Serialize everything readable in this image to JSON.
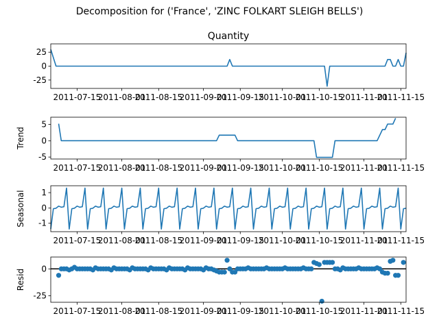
{
  "chart_data": {
    "type": "line",
    "title": "Decomposition for ('France', 'ZINC FOLKART SLEIGH BELLS')",
    "x_start": "2011-07-05",
    "x_end": "2011-11-17",
    "x_tick_labels": [
      "2011-07-15",
      "2011-08-01",
      "2011-08-15",
      "2011-09-01",
      "2011-09-15",
      "2011-10-01",
      "2011-10-15",
      "2011-11-01",
      "2011-11-15"
    ],
    "color": "#1f77b4",
    "panels": [
      {
        "kind": "line",
        "title": "Quantity",
        "ylabel": "",
        "ylim": [
          -40,
          40
        ],
        "yticks": [
          -25,
          0,
          25
        ],
        "points": [
          [
            "2011-07-05",
            30
          ],
          [
            "2011-07-07",
            0
          ],
          [
            "2011-09-10",
            0
          ],
          [
            "2011-09-11",
            12
          ],
          [
            "2011-09-12",
            0
          ],
          [
            "2011-10-17",
            0
          ],
          [
            "2011-10-18",
            -36
          ],
          [
            "2011-10-19",
            0
          ],
          [
            "2011-11-09",
            0
          ],
          [
            "2011-11-10",
            12
          ],
          [
            "2011-11-11",
            12
          ],
          [
            "2011-11-12",
            0
          ],
          [
            "2011-11-13",
            0
          ],
          [
            "2011-11-14",
            12
          ],
          [
            "2011-11-15",
            0
          ],
          [
            "2011-11-16",
            0
          ],
          [
            "2011-11-17",
            24
          ]
        ]
      },
      {
        "kind": "line",
        "title": "",
        "ylabel": "Trend",
        "ylim": [
          -5.6,
          7.2
        ],
        "yticks": [
          -5,
          0,
          5
        ],
        "points": [
          [
            "2011-07-08",
            5.2
          ],
          [
            "2011-07-09",
            0
          ],
          [
            "2011-09-06",
            0
          ],
          [
            "2011-09-07",
            1.7
          ],
          [
            "2011-09-13",
            1.7
          ],
          [
            "2011-09-14",
            0
          ],
          [
            "2011-10-13",
            0
          ],
          [
            "2011-10-14",
            -5.1
          ],
          [
            "2011-10-20",
            -5.1
          ],
          [
            "2011-10-21",
            0
          ],
          [
            "2011-11-06",
            0
          ],
          [
            "2011-11-08",
            3.4
          ],
          [
            "2011-11-09",
            3.4
          ],
          [
            "2011-11-10",
            5.1
          ],
          [
            "2011-11-12",
            5.1
          ],
          [
            "2011-11-13",
            6.9
          ]
        ]
      },
      {
        "kind": "line",
        "title": "",
        "ylabel": "Seasonal",
        "ylim": [
          -1.55,
          1.45
        ],
        "yticks": [
          -1,
          0,
          1
        ],
        "period_days": 7,
        "cycle": [
          -1.38,
          -0.05,
          -0.02,
          0.12,
          0.05,
          0.08,
          1.3
        ],
        "points": []
      },
      {
        "kind": "scatter",
        "title": "",
        "ylabel": "Resid",
        "ylim": [
          -31,
          11
        ],
        "yticks": [
          -25,
          0
        ],
        "points": [
          [
            "2011-07-08",
            -6
          ],
          [
            "2011-07-09",
            0
          ],
          [
            "2011-07-10",
            0
          ],
          [
            "2011-07-11",
            0
          ],
          [
            "2011-07-12",
            -1
          ],
          [
            "2011-07-13",
            0
          ],
          [
            "2011-07-14",
            1.5
          ],
          [
            "2011-07-15",
            0
          ],
          [
            "2011-07-16",
            0
          ],
          [
            "2011-07-17",
            0
          ],
          [
            "2011-07-18",
            0
          ],
          [
            "2011-07-19",
            0
          ],
          [
            "2011-07-20",
            0
          ],
          [
            "2011-07-21",
            -1
          ],
          [
            "2011-07-22",
            1
          ],
          [
            "2011-07-23",
            0
          ],
          [
            "2011-07-24",
            0
          ],
          [
            "2011-07-25",
            0
          ],
          [
            "2011-07-26",
            0
          ],
          [
            "2011-07-27",
            0
          ],
          [
            "2011-07-28",
            -1
          ],
          [
            "2011-07-29",
            1
          ],
          [
            "2011-07-30",
            0
          ],
          [
            "2011-07-31",
            0
          ],
          [
            "2011-08-01",
            0
          ],
          [
            "2011-08-02",
            0
          ],
          [
            "2011-08-03",
            0
          ],
          [
            "2011-08-04",
            -1
          ],
          [
            "2011-08-05",
            1
          ],
          [
            "2011-08-06",
            0
          ],
          [
            "2011-08-07",
            0
          ],
          [
            "2011-08-08",
            0
          ],
          [
            "2011-08-09",
            0
          ],
          [
            "2011-08-10",
            0
          ],
          [
            "2011-08-11",
            -1
          ],
          [
            "2011-08-12",
            1
          ],
          [
            "2011-08-13",
            0
          ],
          [
            "2011-08-14",
            0
          ],
          [
            "2011-08-15",
            0
          ],
          [
            "2011-08-16",
            0
          ],
          [
            "2011-08-17",
            0
          ],
          [
            "2011-08-18",
            -1
          ],
          [
            "2011-08-19",
            1
          ],
          [
            "2011-08-20",
            0
          ],
          [
            "2011-08-21",
            0
          ],
          [
            "2011-08-22",
            0
          ],
          [
            "2011-08-23",
            0
          ],
          [
            "2011-08-24",
            0
          ],
          [
            "2011-08-25",
            -1
          ],
          [
            "2011-08-26",
            1
          ],
          [
            "2011-08-27",
            0
          ],
          [
            "2011-08-28",
            0
          ],
          [
            "2011-08-29",
            0
          ],
          [
            "2011-08-30",
            0
          ],
          [
            "2011-08-31",
            0
          ],
          [
            "2011-09-01",
            -1
          ],
          [
            "2011-09-02",
            1
          ],
          [
            "2011-09-03",
            0
          ],
          [
            "2011-09-04",
            0
          ],
          [
            "2011-09-05",
            -1
          ],
          [
            "2011-09-06",
            -2
          ],
          [
            "2011-09-07",
            -3
          ],
          [
            "2011-09-08",
            -3
          ],
          [
            "2011-09-09",
            -3
          ],
          [
            "2011-09-10",
            8
          ],
          [
            "2011-09-11",
            0
          ],
          [
            "2011-09-12",
            -3
          ],
          [
            "2011-09-13",
            -3
          ],
          [
            "2011-09-14",
            0
          ],
          [
            "2011-09-15",
            0
          ],
          [
            "2011-09-16",
            0
          ],
          [
            "2011-09-17",
            0
          ],
          [
            "2011-09-18",
            1
          ],
          [
            "2011-09-19",
            0
          ],
          [
            "2011-09-20",
            0
          ],
          [
            "2011-09-21",
            0
          ],
          [
            "2011-09-22",
            0
          ],
          [
            "2011-09-23",
            0
          ],
          [
            "2011-09-24",
            0
          ],
          [
            "2011-09-25",
            1
          ],
          [
            "2011-09-26",
            0
          ],
          [
            "2011-09-27",
            0
          ],
          [
            "2011-09-28",
            0
          ],
          [
            "2011-09-29",
            0
          ],
          [
            "2011-09-30",
            0
          ],
          [
            "2011-10-01",
            0
          ],
          [
            "2011-10-02",
            1
          ],
          [
            "2011-10-03",
            0
          ],
          [
            "2011-10-04",
            0
          ],
          [
            "2011-10-05",
            0
          ],
          [
            "2011-10-06",
            0
          ],
          [
            "2011-10-07",
            0
          ],
          [
            "2011-10-08",
            0
          ],
          [
            "2011-10-09",
            1
          ],
          [
            "2011-10-10",
            0
          ],
          [
            "2011-10-11",
            0
          ],
          [
            "2011-10-12",
            0
          ],
          [
            "2011-10-13",
            6
          ],
          [
            "2011-10-14",
            5
          ],
          [
            "2011-10-15",
            4
          ],
          [
            "2011-10-16",
            -30
          ],
          [
            "2011-10-17",
            6
          ],
          [
            "2011-10-18",
            6
          ],
          [
            "2011-10-19",
            6
          ],
          [
            "2011-10-20",
            6
          ],
          [
            "2011-10-21",
            0
          ],
          [
            "2011-10-22",
            0
          ],
          [
            "2011-10-23",
            -1
          ],
          [
            "2011-10-24",
            1
          ],
          [
            "2011-10-25",
            0
          ],
          [
            "2011-10-26",
            0
          ],
          [
            "2011-10-27",
            0
          ],
          [
            "2011-10-28",
            0
          ],
          [
            "2011-10-29",
            0
          ],
          [
            "2011-10-30",
            1
          ],
          [
            "2011-10-31",
            0
          ],
          [
            "2011-11-01",
            0
          ],
          [
            "2011-11-02",
            0
          ],
          [
            "2011-11-03",
            0
          ],
          [
            "2011-11-04",
            0
          ],
          [
            "2011-11-05",
            0
          ],
          [
            "2011-11-06",
            1
          ],
          [
            "2011-11-07",
            0
          ],
          [
            "2011-11-08",
            -3
          ],
          [
            "2011-11-09",
            -4
          ],
          [
            "2011-11-10",
            -4
          ],
          [
            "2011-11-11",
            7
          ],
          [
            "2011-11-12",
            8
          ],
          [
            "2011-11-13",
            -6
          ],
          [
            "2011-11-14",
            -6
          ],
          [
            "2011-11-16",
            6
          ]
        ]
      }
    ]
  }
}
